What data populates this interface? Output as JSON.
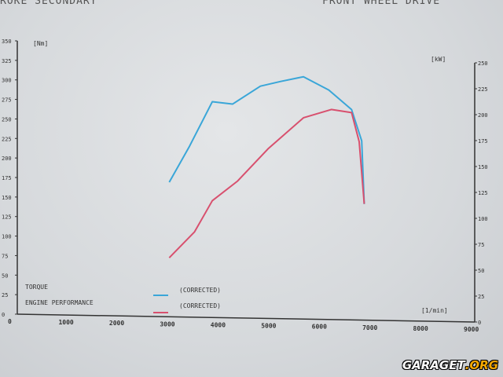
{
  "header": {
    "left": "ROKE SECONDARY",
    "right": "FRONT WHEEL DRIVE"
  },
  "watermark": {
    "main": "GARAGET",
    "suffix": ".ORG"
  },
  "chart_data": {
    "type": "line",
    "title": "",
    "xlabel": "[1/min]",
    "ylabel_left": "[Nm]",
    "ylabel_right": "[kW]",
    "xlim": [
      0,
      9000
    ],
    "ylim_left": [
      0,
      350
    ],
    "ylim_right": [
      0,
      250
    ],
    "x_ticks": [
      "0",
      "1000",
      "2000",
      "3000",
      "4000",
      "5000",
      "6000",
      "7000",
      "8000",
      "9000"
    ],
    "y_left_ticks": [
      "0",
      "25",
      "50",
      "75",
      "100",
      "125",
      "150",
      "175",
      "200",
      "225",
      "250",
      "275",
      "300",
      "325",
      "350"
    ],
    "y_right_ticks": [
      "0",
      "25",
      "50",
      "75",
      "100",
      "125",
      "150",
      "175",
      "200",
      "225",
      "250"
    ],
    "grid": false,
    "legend": {
      "placement": "bottom-left",
      "suffix": "(CORRECTED)"
    },
    "series": [
      {
        "name": "TORQUE",
        "axis": "left",
        "color": "#3aa6d8",
        "x": [
          3000,
          3400,
          3850,
          4250,
          4800,
          5200,
          5650,
          6150,
          6600,
          6800,
          6850
        ],
        "y": [
          169,
          215,
          272,
          269,
          292,
          298,
          304,
          287,
          262,
          222,
          141
        ]
      },
      {
        "name": "ENGINE PERFORMANCE",
        "axis": "right",
        "color": "#d8506e",
        "x": [
          3000,
          3500,
          3850,
          4350,
          4950,
          5650,
          6200,
          6600,
          6750,
          6850
        ],
        "y": [
          62,
          87,
          117,
          136,
          167,
          197,
          205,
          202,
          174,
          114
        ]
      }
    ]
  }
}
